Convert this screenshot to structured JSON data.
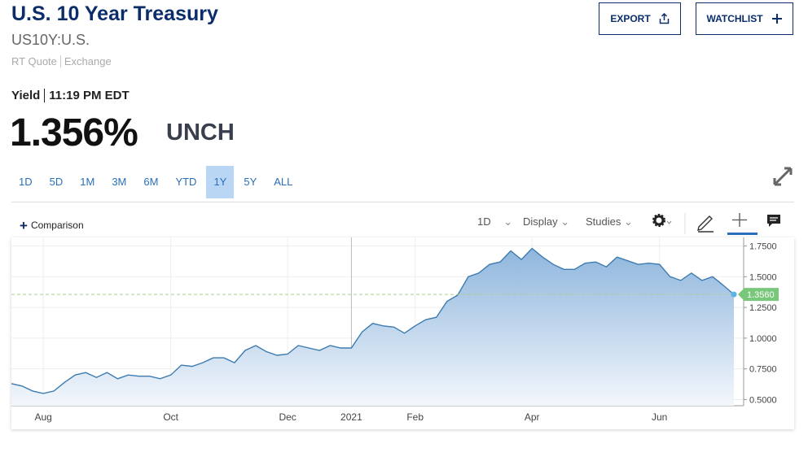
{
  "header": {
    "title": "U.S. 10 Year Treasury",
    "symbol": "US10Y:U.S.",
    "quote_type": "RT Quote",
    "exchange": "Exchange",
    "buttons": [
      "EXPORT",
      "WATCHLIST"
    ]
  },
  "quote": {
    "label": "Yield",
    "time": "11:19 PM EDT",
    "price": "1.356%",
    "change": "UNCH"
  },
  "ranges": {
    "items": [
      "1D",
      "5D",
      "1M",
      "3M",
      "6M",
      "YTD",
      "1Y",
      "5Y",
      "ALL"
    ],
    "selected": 6
  },
  "toolbar": {
    "comparison": "Comparison",
    "interval": "1D",
    "display": "Display",
    "studies": "Studies"
  },
  "chart_data": {
    "type": "line",
    "color": "#3d7bb0",
    "categories": [
      null,
      null,
      null,
      "Aug",
      null,
      null,
      null,
      null,
      null,
      null,
      null,
      null,
      null,
      null,
      null,
      "Oct",
      null,
      null,
      null,
      null,
      null,
      null,
      null,
      null,
      null,
      null,
      "Dec",
      null,
      null,
      null,
      null,
      null,
      "2021",
      null,
      null,
      null,
      null,
      null,
      "Feb",
      null,
      null,
      null,
      null,
      null,
      null,
      null,
      null,
      null,
      null,
      "Apr",
      null,
      null,
      null,
      null,
      null,
      null,
      null,
      null,
      null,
      null,
      null,
      "Jun",
      null,
      null,
      null,
      null,
      null,
      null,
      null
    ],
    "values": [
      0.63,
      0.61,
      0.57,
      0.55,
      0.57,
      0.64,
      0.7,
      0.72,
      0.68,
      0.72,
      0.67,
      0.7,
      0.69,
      0.69,
      0.67,
      0.7,
      0.78,
      0.77,
      0.8,
      0.84,
      0.84,
      0.8,
      0.9,
      0.94,
      0.89,
      0.86,
      0.87,
      0.94,
      0.92,
      0.9,
      0.94,
      0.92,
      0.92,
      1.05,
      1.12,
      1.1,
      1.09,
      1.04,
      1.1,
      1.15,
      1.17,
      1.3,
      1.35,
      1.5,
      1.53,
      1.6,
      1.62,
      1.71,
      1.64,
      1.73,
      1.66,
      1.6,
      1.56,
      1.56,
      1.61,
      1.62,
      1.58,
      1.66,
      1.63,
      1.6,
      1.61,
      1.6,
      1.5,
      1.47,
      1.53,
      1.47,
      1.5,
      1.43,
      1.356
    ],
    "current": {
      "value": 1.356,
      "label": "1.3560"
    },
    "ylim": [
      0.45,
      1.8
    ],
    "yticks": [
      {
        "value": 0.5,
        "label": "0.5000"
      },
      {
        "value": 0.75,
        "label": "0.7500"
      },
      {
        "value": 1.0,
        "label": "1.0000"
      },
      {
        "value": 1.25,
        "label": "1.2500"
      },
      {
        "value": 1.5,
        "label": "1.5000"
      },
      {
        "value": 1.75,
        "label": "1.7500"
      }
    ],
    "grid": true
  }
}
